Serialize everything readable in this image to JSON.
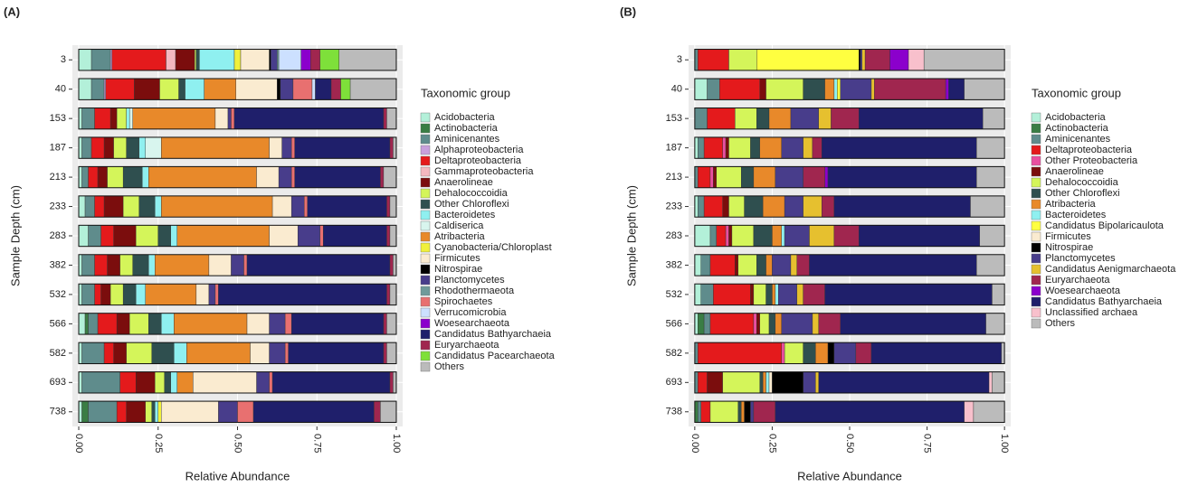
{
  "chart_data": [
    {
      "type": "bar",
      "orientation": "horizontal",
      "stacked": true,
      "panel_label": "(A)",
      "xlabel": "Relative Abundance",
      "ylabel": "Sample Depth (cm)",
      "legend_title": "Taxonomic group",
      "grid": true,
      "xlim": [
        -0.02,
        1.02
      ],
      "xticks": [
        {
          "value": 0,
          "label": "0.00"
        },
        {
          "value": 0.25,
          "label": "0.25"
        },
        {
          "value": 0.5,
          "label": "0.50"
        },
        {
          "value": 0.75,
          "label": "0.75"
        },
        {
          "value": 1,
          "label": "1.00"
        }
      ],
      "categories": [
        "3",
        "40",
        "153",
        "187",
        "213",
        "233",
        "283",
        "382",
        "532",
        "566",
        "582",
        "693",
        "738"
      ],
      "series": [
        {
          "name": "Acidobacteria",
          "color": "#b3f0d9",
          "values": [
            0.04,
            0.04,
            0.01,
            0.01,
            0.01,
            0.02,
            0.03,
            0.01,
            0.01,
            0.02,
            0.01,
            0.01,
            0.01
          ]
        },
        {
          "name": "Actinobacteria",
          "color": "#3a7d44",
          "values": [
            0,
            0,
            0,
            0,
            0,
            0,
            0,
            0,
            0,
            0.01,
            0,
            0,
            0.02
          ]
        },
        {
          "name": "Aminicenantes",
          "color": "#5f8c8c",
          "values": [
            0.06,
            0.04,
            0.04,
            0.03,
            0.02,
            0.03,
            0.04,
            0.04,
            0.04,
            0.03,
            0.07,
            0.12,
            0.09
          ]
        },
        {
          "name": "Alphaproteobacteria",
          "color": "#c9a0dc",
          "values": [
            0.005,
            0.005,
            0,
            0,
            0,
            0,
            0,
            0,
            0,
            0,
            0,
            0,
            0
          ]
        },
        {
          "name": "Deltaproteobacteria",
          "color": "#e41a1c",
          "values": [
            0.17,
            0.09,
            0.05,
            0.04,
            0.03,
            0.03,
            0.04,
            0.04,
            0.02,
            0.06,
            0.03,
            0.05,
            0.03
          ]
        },
        {
          "name": "Gammaproteobacteria",
          "color": "#f4b8c0",
          "values": [
            0.03,
            0,
            0,
            0,
            0,
            0,
            0,
            0,
            0,
            0,
            0,
            0,
            0
          ]
        },
        {
          "name": "Anaerolineae",
          "color": "#7b0d0d",
          "values": [
            0.06,
            0.08,
            0.02,
            0.03,
            0.03,
            0.06,
            0.07,
            0.04,
            0.03,
            0.04,
            0.04,
            0.06,
            0.06
          ]
        },
        {
          "name": "Dehalococcoidia",
          "color": "#d4f55a",
          "values": [
            0.005,
            0.06,
            0.03,
            0.04,
            0.05,
            0.05,
            0.07,
            0.04,
            0.04,
            0.06,
            0.08,
            0.03,
            0.02
          ]
        },
        {
          "name": "Other Chloroflexi",
          "color": "#2f4f4f",
          "values": [
            0.01,
            0.02,
            0,
            0.04,
            0.06,
            0.05,
            0.04,
            0.05,
            0.04,
            0.04,
            0.07,
            0.02,
            0.01
          ]
        },
        {
          "name": "Bacteroidetes",
          "color": "#8ff0f0",
          "values": [
            0.11,
            0.06,
            0.01,
            0.02,
            0.02,
            0.02,
            0.02,
            0.02,
            0.03,
            0.04,
            0.04,
            0.02,
            0.01
          ]
        },
        {
          "name": "Caldiserica",
          "color": "#d8f5ee",
          "values": [
            0,
            0,
            0.01,
            0.05,
            0,
            0,
            0,
            0,
            0,
            0,
            0,
            0,
            0
          ]
        },
        {
          "name": "Atribacteria",
          "color": "#e8892a",
          "values": [
            0,
            0.1,
            0.26,
            0.34,
            0.34,
            0.35,
            0.29,
            0.17,
            0.16,
            0.23,
            0.2,
            0.05,
            0
          ]
        },
        {
          "name": "Cyanobacteria/Chloroplast",
          "color": "#f0f03c",
          "values": [
            0.02,
            0,
            0,
            0,
            0,
            0,
            0,
            0,
            0,
            0,
            0,
            0,
            0.01
          ]
        },
        {
          "name": "Firmicutes",
          "color": "#faebd0",
          "values": [
            0.09,
            0.13,
            0.04,
            0.04,
            0.07,
            0.06,
            0.09,
            0.07,
            0.04,
            0.07,
            0.06,
            0.2,
            0.18
          ]
        },
        {
          "name": "Nitrospirae",
          "color": "#000000",
          "values": [
            0.005,
            0.01,
            0,
            0,
            0,
            0,
            0,
            0,
            0,
            0,
            0,
            0,
            0
          ]
        },
        {
          "name": "Planctomycetes",
          "color": "#483d8b",
          "values": [
            0.02,
            0.04,
            0.01,
            0.03,
            0.04,
            0.04,
            0.07,
            0.04,
            0.02,
            0.05,
            0.05,
            0.04,
            0.06
          ]
        },
        {
          "name": "Rhodothermaeota",
          "color": "#6f9a9a",
          "values": [
            0.005,
            0,
            0,
            0,
            0,
            0,
            0,
            0,
            0,
            0,
            0,
            0,
            0
          ]
        },
        {
          "name": "Spirochaetes",
          "color": "#e87070",
          "values": [
            0,
            0.06,
            0.01,
            0.01,
            0.01,
            0.01,
            0.01,
            0.01,
            0.01,
            0.02,
            0.01,
            0.01,
            0.05
          ]
        },
        {
          "name": "Verrucomicrobia",
          "color": "#cce0ff",
          "values": [
            0.07,
            0.01,
            0,
            0,
            0,
            0,
            0,
            0,
            0,
            0,
            0,
            0,
            0
          ]
        },
        {
          "name": "Woesearchaeota",
          "color": "#8b00cc",
          "values": [
            0.03,
            0,
            0,
            0,
            0,
            0,
            0,
            0,
            0,
            0,
            0,
            0,
            0
          ]
        },
        {
          "name": "Candidatus Bathyarchaeia",
          "color": "#1f1f6b",
          "values": [
            0,
            0.05,
            0.47,
            0.3,
            0.27,
            0.25,
            0.2,
            0.45,
            0.53,
            0.29,
            0.3,
            0.37,
            0.38
          ]
        },
        {
          "name": "Euryarchaeota",
          "color": "#a0264f",
          "values": [
            0.03,
            0.03,
            0.01,
            0.01,
            0.01,
            0.01,
            0.01,
            0.01,
            0.01,
            0.01,
            0.01,
            0.01,
            0.02
          ]
        },
        {
          "name": "Candidatus Pacearchaeota",
          "color": "#7ee03a",
          "values": [
            0.06,
            0.03,
            0,
            0,
            0,
            0,
            0,
            0,
            0,
            0,
            0,
            0,
            0
          ]
        },
        {
          "name": "Others",
          "color": "#bbbbbb",
          "values": [
            0.18,
            0.145,
            0.03,
            0.01,
            0.04,
            0.02,
            0.02,
            0.01,
            0.02,
            0.03,
            0.03,
            0.01,
            0.05
          ]
        }
      ]
    },
    {
      "type": "bar",
      "orientation": "horizontal",
      "stacked": true,
      "panel_label": "(B)",
      "xlabel": "Relative Abundance",
      "ylabel": "Sample Depth (cm)",
      "legend_title": "Taxonomic group",
      "grid": true,
      "xlim": [
        -0.02,
        1.02
      ],
      "xticks": [
        {
          "value": 0,
          "label": "0.00"
        },
        {
          "value": 0.25,
          "label": "0.25"
        },
        {
          "value": 0.5,
          "label": "0.50"
        },
        {
          "value": 0.75,
          "label": "0.75"
        },
        {
          "value": 1,
          "label": "1.00"
        }
      ],
      "categories": [
        "3",
        "40",
        "153",
        "187",
        "213",
        "233",
        "283",
        "382",
        "532",
        "566",
        "582",
        "693",
        "738"
      ],
      "series": [
        {
          "name": "Acidobacteria",
          "color": "#b3f0d9",
          "values": [
            0,
            0.04,
            0,
            0.01,
            0,
            0.01,
            0.05,
            0.02,
            0.02,
            0.01,
            0,
            0,
            0
          ]
        },
        {
          "name": "Actinobacteria",
          "color": "#3a7d44",
          "values": [
            0,
            0,
            0,
            0,
            0,
            0,
            0,
            0,
            0,
            0.02,
            0,
            0,
            0.01
          ]
        },
        {
          "name": "Aminicenantes",
          "color": "#5f8c8c",
          "values": [
            0.01,
            0.04,
            0.04,
            0.02,
            0.01,
            0.02,
            0.02,
            0.03,
            0.04,
            0.02,
            0.01,
            0.01,
            0.01
          ]
        },
        {
          "name": "Deltaproteobacteria",
          "color": "#e41a1c",
          "values": [
            0.1,
            0.13,
            0.09,
            0.06,
            0.04,
            0.06,
            0.03,
            0.08,
            0.12,
            0.14,
            0.27,
            0.03,
            0.03
          ]
        },
        {
          "name": "Other Proteobacteria",
          "color": "#e94fa0",
          "values": [
            0,
            0,
            0,
            0.01,
            0.01,
            0,
            0.01,
            0,
            0,
            0.01,
            0.01,
            0,
            0
          ]
        },
        {
          "name": "Anaerolineae",
          "color": "#7b0d0d",
          "values": [
            0,
            0.02,
            0,
            0.01,
            0.01,
            0.02,
            0.01,
            0.01,
            0.01,
            0.01,
            0,
            0.05,
            0
          ]
        },
        {
          "name": "Dehalococcoidia",
          "color": "#d4f55a",
          "values": [
            0.09,
            0.12,
            0.07,
            0.07,
            0.08,
            0.05,
            0.07,
            0.06,
            0.04,
            0.03,
            0.06,
            0.12,
            0.09
          ]
        },
        {
          "name": "Other Chloroflexi",
          "color": "#2f4f4f",
          "values": [
            0,
            0.07,
            0.04,
            0.03,
            0.04,
            0.06,
            0.06,
            0.03,
            0.02,
            0.02,
            0.04,
            0.01,
            0.01
          ]
        },
        {
          "name": "Atribacteria",
          "color": "#e8892a",
          "values": [
            0,
            0.03,
            0.07,
            0.07,
            0.07,
            0.07,
            0.03,
            0.02,
            0.01,
            0.02,
            0.04,
            0.01,
            0.01
          ]
        },
        {
          "name": "Bacteroidetes",
          "color": "#8ff0f0",
          "values": [
            0,
            0.01,
            0,
            0,
            0,
            0,
            0.01,
            0,
            0.01,
            0,
            0,
            0.01,
            0
          ]
        },
        {
          "name": "Candidatus Bipolaricaulota",
          "color": "#ffff40",
          "values": [
            0.33,
            0.01,
            0,
            0,
            0,
            0,
            0,
            0,
            0,
            0,
            0,
            0,
            0
          ]
        },
        {
          "name": "Firmicutes",
          "color": "#faebd0",
          "values": [
            0,
            0,
            0,
            0,
            0,
            0,
            0,
            0,
            0,
            0,
            0,
            0.01,
            0
          ]
        },
        {
          "name": "Nitrospirae",
          "color": "#000000",
          "values": [
            0.005,
            0,
            0,
            0,
            0,
            0,
            0,
            0,
            0,
            0,
            0.02,
            0.1,
            0.02
          ]
        },
        {
          "name": "Planctomycetes",
          "color": "#483d8b",
          "values": [
            0.005,
            0.1,
            0.09,
            0.07,
            0.09,
            0.06,
            0.08,
            0.06,
            0.06,
            0.1,
            0.07,
            0.04,
            0.01
          ]
        },
        {
          "name": "Candidatus Aenigmarchaeota",
          "color": "#e6c02f",
          "values": [
            0.01,
            0.01,
            0.04,
            0.03,
            0,
            0.06,
            0.08,
            0.02,
            0.02,
            0.02,
            0,
            0.01,
            0
          ]
        },
        {
          "name": "Euryarchaeota",
          "color": "#a0264f",
          "values": [
            0.08,
            0.23,
            0.09,
            0.03,
            0.07,
            0.04,
            0.08,
            0.04,
            0.07,
            0.07,
            0.05,
            0,
            0.07
          ]
        },
        {
          "name": "Woesearchaeota",
          "color": "#8b00cc",
          "values": [
            0.06,
            0.01,
            0,
            0,
            0.01,
            0,
            0,
            0,
            0,
            0,
            0,
            0,
            0
          ]
        },
        {
          "name": "Candidatus Bathyarchaeia",
          "color": "#1f1f6b",
          "values": [
            0,
            0.05,
            0.4,
            0.5,
            0.48,
            0.44,
            0.39,
            0.54,
            0.54,
            0.47,
            0.42,
            0.55,
            0.61
          ]
        },
        {
          "name": "Unclassified archaea",
          "color": "#f8c0cc",
          "values": [
            0.05,
            0,
            0,
            0,
            0,
            0,
            0,
            0,
            0,
            0,
            0,
            0.01,
            0.03
          ]
        },
        {
          "name": "Others",
          "color": "#bbbbbb",
          "values": [
            0.26,
            0.13,
            0.07,
            0.09,
            0.09,
            0.11,
            0.08,
            0.09,
            0.04,
            0.06,
            0.01,
            0.04,
            0.1
          ]
        }
      ]
    }
  ]
}
